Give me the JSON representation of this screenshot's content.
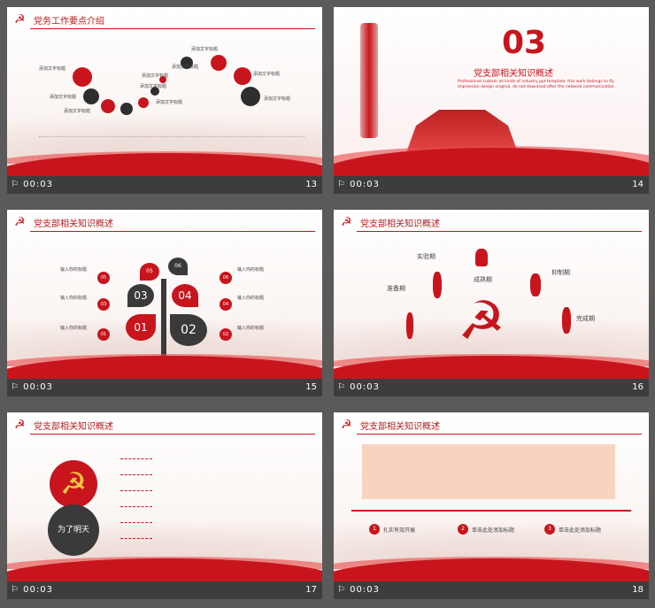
{
  "slides": [
    {
      "time": "00:03",
      "num": "13",
      "title": "党务工作要点介绍"
    },
    {
      "time": "00:03",
      "num": "14",
      "title": "党支部相关知识概述",
      "big": "03",
      "sub": "Professional custom all kinds of industry ppt template, this work belongs to fly impression design original, do not download after the network communication."
    },
    {
      "time": "00:03",
      "num": "15",
      "title": "党支部相关知识概述"
    },
    {
      "time": "00:03",
      "num": "16",
      "title": "党支部相关知识概述"
    },
    {
      "time": "00:03",
      "num": "17",
      "title": "党支部相关知识概述",
      "circle": "为了明天"
    },
    {
      "time": "00:03",
      "num": "18",
      "title": "党支部相关知识概述"
    }
  ],
  "s13": {
    "labels": [
      "添加文字标题",
      "添加文字标题",
      "添加文字标题",
      "添加文字标题",
      "添加文字标题",
      "添加文字标题",
      "添加文字标题",
      "添加文字标题",
      "添加文字标题",
      "添加文字标题"
    ]
  },
  "s15": {
    "nums": [
      "01",
      "02",
      "03",
      "04",
      "05",
      "06"
    ],
    "left": [
      "输入你的标题",
      "输入你的标题",
      "输入你的标题"
    ],
    "right": [
      "输入你的标题",
      "输入你的标题",
      "输入你的标题"
    ],
    "ln": [
      "05",
      "03",
      "01"
    ],
    "rn": [
      "06",
      "04",
      "02"
    ]
  },
  "s16": {
    "phases": [
      "实验期",
      "准备期",
      "成熟期",
      "抑制期",
      "完成期"
    ]
  },
  "s18": {
    "items": [
      {
        "n": "1",
        "t": "扎实有效开展"
      },
      {
        "n": "2",
        "t": "单击此处添加标题"
      },
      {
        "n": "3",
        "t": "单击此处添加标题"
      }
    ]
  }
}
